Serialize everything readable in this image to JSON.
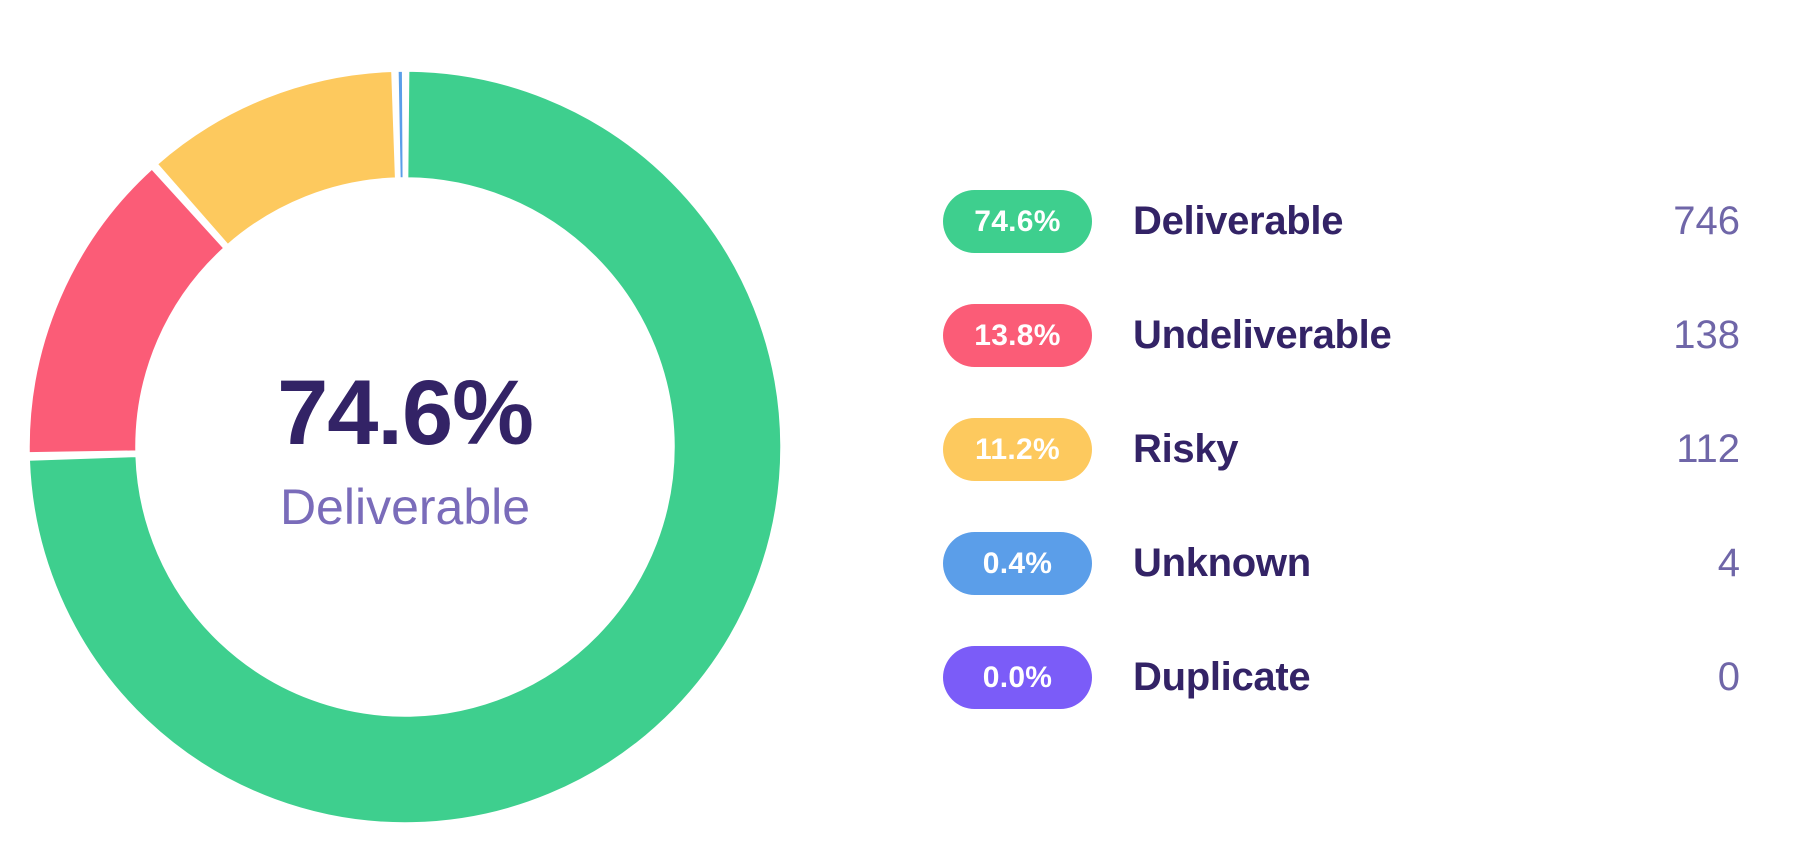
{
  "colors": {
    "background": "#FFFFFF",
    "text_dark": "#332366",
    "text_muted": "#7A6CBA",
    "count_text": "#6F66A8",
    "pill_text": "#FFFFFF",
    "slice_gap": "#FFFFFF"
  },
  "donut_center": {
    "value": "74.6%",
    "label": "Deliverable"
  },
  "legend": {
    "items": [
      {
        "percent": "74.6%",
        "label": "Deliverable",
        "count": "746",
        "color": "#3ECF8E"
      },
      {
        "percent": "13.8%",
        "label": "Undeliverable",
        "count": "138",
        "color": "#FB5C77"
      },
      {
        "percent": "11.2%",
        "label": "Risky",
        "count": "112",
        "color": "#FDC95E"
      },
      {
        "percent": "0.4%",
        "label": "Unknown",
        "count": "4",
        "color": "#5B9EE9"
      },
      {
        "percent": "0.0%",
        "label": "Duplicate",
        "count": "0",
        "color": "#7B5CF8"
      }
    ]
  },
  "chart_data": {
    "type": "pie",
    "variant": "donut",
    "title": "",
    "center_value": "74.6%",
    "center_label": "Deliverable",
    "categories": [
      "Deliverable",
      "Undeliverable",
      "Risky",
      "Unknown",
      "Duplicate"
    ],
    "values": [
      746,
      138,
      112,
      4,
      0
    ],
    "percents": [
      74.6,
      13.8,
      11.2,
      0.4,
      0.0
    ],
    "percent_labels": [
      "74.6%",
      "13.8%",
      "11.2%",
      "0.4%",
      "0.0%"
    ],
    "colors": [
      "#3ECF8E",
      "#FB5C77",
      "#FDC95E",
      "#5B9EE9",
      "#7B5CF8"
    ],
    "start_angle_deg": 0,
    "direction": "clockwise",
    "inner_radius_ratio": 0.715,
    "pad_angle_deg": 1.1,
    "legend_position": "right"
  }
}
